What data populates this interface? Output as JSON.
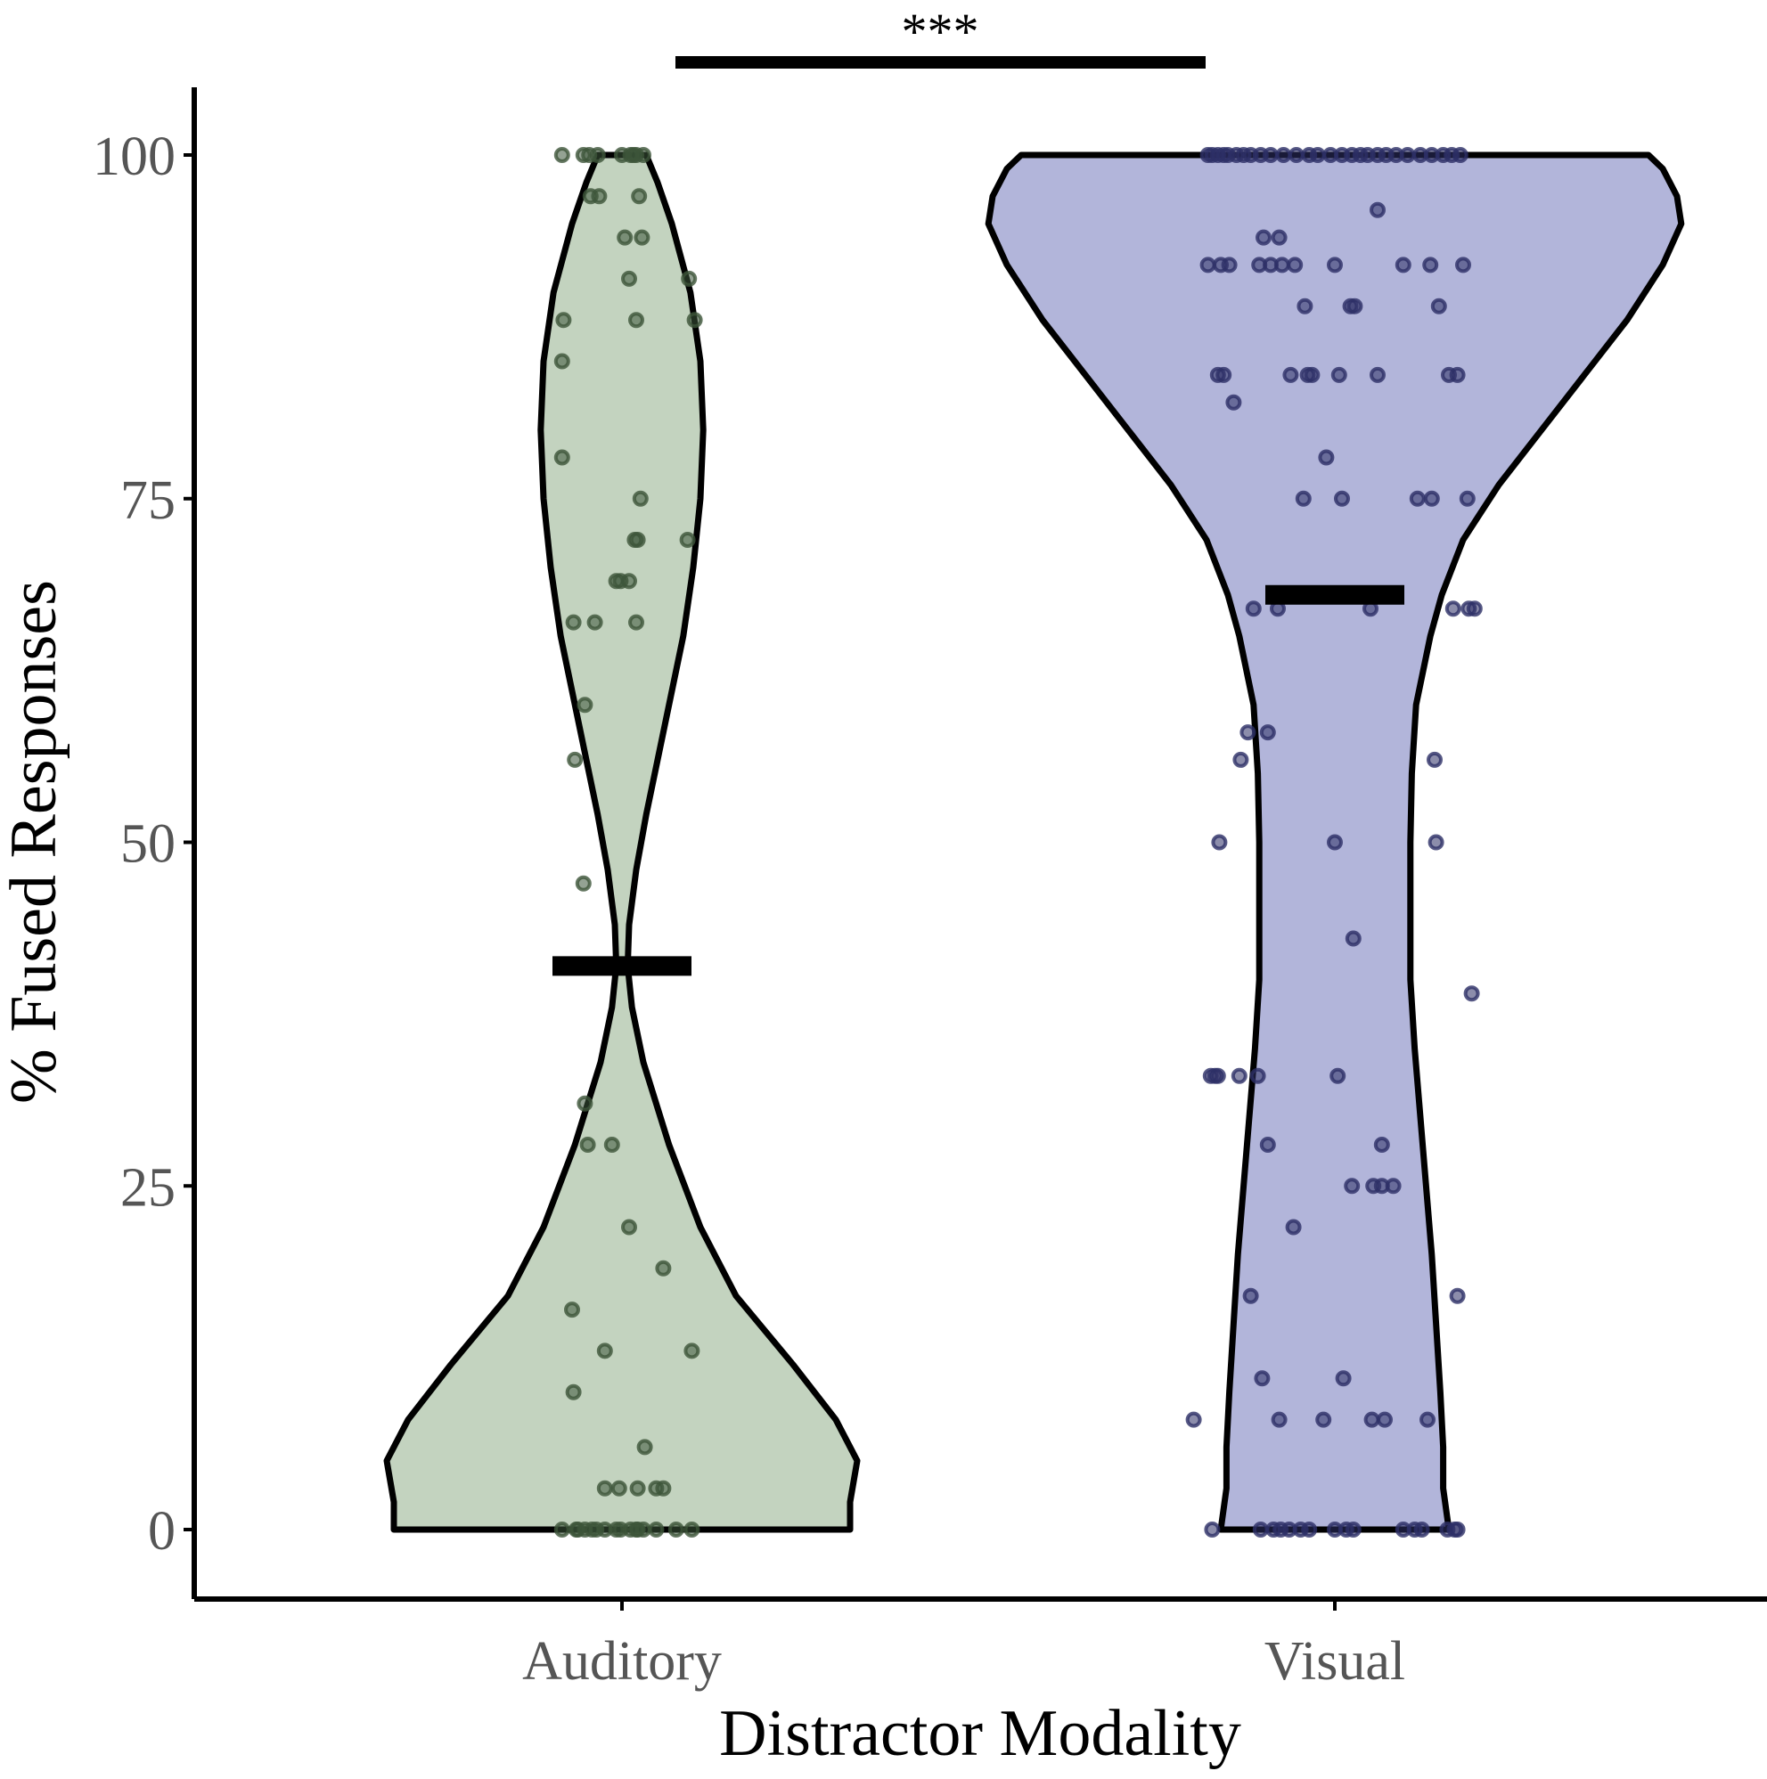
{
  "chart_data": {
    "type": "violin",
    "xlabel": "Distractor Modality",
    "ylabel": "% Fused Responses",
    "ylim": [
      -5,
      105
    ],
    "yticks": [
      0,
      25,
      50,
      75,
      100
    ],
    "categories": [
      "Auditory",
      "Visual"
    ],
    "significance": {
      "between": [
        "Auditory",
        "Visual"
      ],
      "label": "***"
    },
    "series": [
      {
        "category": "Auditory",
        "fill_color": "#c3d3bf",
        "point_color": "#3d553a",
        "mean": 41,
        "violin_halfwidth": [
          [
            0,
            16
          ],
          [
            2,
            16
          ],
          [
            5,
            16.5
          ],
          [
            8,
            15
          ],
          [
            12,
            12
          ],
          [
            17,
            8
          ],
          [
            22,
            5.5
          ],
          [
            28,
            3.3
          ],
          [
            34,
            1.5
          ],
          [
            38,
            0.7
          ],
          [
            41,
            0.4
          ],
          [
            44,
            0.5
          ],
          [
            48,
            1
          ],
          [
            52,
            1.7
          ],
          [
            56,
            2.5
          ],
          [
            60,
            3.3
          ],
          [
            65,
            4.3
          ],
          [
            70,
            5
          ],
          [
            75,
            5.5
          ],
          [
            80,
            5.7
          ],
          [
            85,
            5.5
          ],
          [
            90,
            4.8
          ],
          [
            95,
            3.5
          ],
          [
            98,
            2.5
          ],
          [
            100,
            1.7
          ]
        ],
        "points": [
          [
            0.0,
            100
          ],
          [
            0.6,
            100
          ],
          [
            0.8,
            100
          ],
          [
            1.0,
            100
          ],
          [
            1.5,
            100
          ],
          [
            -2.3,
            100
          ],
          [
            -1.7,
            100
          ],
          [
            -4.2,
            100
          ],
          [
            -2.7,
            100
          ],
          [
            -1.6,
            97
          ],
          [
            -2.2,
            97
          ],
          [
            1.2,
            97
          ],
          [
            1.4,
            94
          ],
          [
            0.2,
            94
          ],
          [
            4.7,
            91
          ],
          [
            0.5,
            91
          ],
          [
            1.0,
            88
          ],
          [
            -4.1,
            88
          ],
          [
            5.1,
            88
          ],
          [
            -4.2,
            85
          ],
          [
            -4.2,
            78
          ],
          [
            1.3,
            75
          ],
          [
            4.6,
            72
          ],
          [
            0.9,
            72
          ],
          [
            1.1,
            72
          ],
          [
            0.5,
            69
          ],
          [
            -0.4,
            69
          ],
          [
            -0.1,
            69
          ],
          [
            -3.4,
            66
          ],
          [
            -1.9,
            66
          ],
          [
            1.0,
            66
          ],
          [
            -2.6,
            60
          ],
          [
            -3.3,
            56
          ],
          [
            -2.7,
            47
          ],
          [
            3.1,
            41
          ],
          [
            -2.6,
            31
          ],
          [
            -2.4,
            28
          ],
          [
            -0.7,
            28
          ],
          [
            0.5,
            22
          ],
          [
            2.9,
            19
          ],
          [
            -3.5,
            16
          ],
          [
            -1.2,
            13
          ],
          [
            4.9,
            13
          ],
          [
            -3.4,
            10
          ],
          [
            1.6,
            6
          ],
          [
            -1.2,
            3
          ],
          [
            -0.2,
            3
          ],
          [
            1.1,
            3
          ],
          [
            2.4,
            3
          ],
          [
            2.9,
            3
          ],
          [
            -4.2,
            0
          ],
          [
            -3.2,
            0
          ],
          [
            -3.1,
            0
          ],
          [
            -2.6,
            0
          ],
          [
            -2.1,
            0
          ],
          [
            -1.8,
            0
          ],
          [
            -1.2,
            0
          ],
          [
            -0.4,
            0
          ],
          [
            -0.1,
            0
          ],
          [
            0.6,
            0
          ],
          [
            1.0,
            0
          ],
          [
            1.1,
            0
          ],
          [
            1.5,
            0
          ],
          [
            2.4,
            0
          ],
          [
            3.8,
            0
          ],
          [
            4.9,
            0
          ]
        ]
      },
      {
        "category": "Visual",
        "fill_color": "#b2b5da",
        "point_color": "#2d3066",
        "mean": 68,
        "violin_halfwidth": [
          [
            0,
            8
          ],
          [
            3,
            7.6
          ],
          [
            6,
            7.6
          ],
          [
            10,
            7.4
          ],
          [
            15,
            7.1
          ],
          [
            20,
            6.8
          ],
          [
            25,
            6.4
          ],
          [
            30,
            6
          ],
          [
            35,
            5.6
          ],
          [
            40,
            5.3
          ],
          [
            45,
            5.3
          ],
          [
            50,
            5.3
          ],
          [
            55,
            5.4
          ],
          [
            60,
            5.7
          ],
          [
            65,
            6.7
          ],
          [
            68,
            7.5
          ],
          [
            72,
            9
          ],
          [
            76,
            11.5
          ],
          [
            80,
            14.5
          ],
          [
            84,
            17.5
          ],
          [
            88,
            20.5
          ],
          [
            92,
            23
          ],
          [
            95,
            24.3
          ],
          [
            97,
            24
          ],
          [
            99,
            23
          ],
          [
            100,
            22
          ]
        ],
        "points": [
          [
            -8.9,
            100
          ],
          [
            -8.6,
            100
          ],
          [
            -8.2,
            100
          ],
          [
            -7.8,
            100
          ],
          [
            -7.5,
            100
          ],
          [
            -6.9,
            100
          ],
          [
            -6.4,
            100
          ],
          [
            -5.9,
            100
          ],
          [
            -5.2,
            100
          ],
          [
            -4.5,
            100
          ],
          [
            -3.6,
            100
          ],
          [
            -2.7,
            100
          ],
          [
            -1.8,
            100
          ],
          [
            -1.2,
            100
          ],
          [
            -0.3,
            100
          ],
          [
            0.5,
            100
          ],
          [
            1.2,
            100
          ],
          [
            1.8,
            100
          ],
          [
            2.3,
            100
          ],
          [
            3.0,
            100
          ],
          [
            3.6,
            100
          ],
          [
            4.3,
            100
          ],
          [
            5.1,
            100
          ],
          [
            6.0,
            100
          ],
          [
            6.8,
            100
          ],
          [
            7.6,
            100
          ],
          [
            8.2,
            100
          ],
          [
            8.8,
            100
          ],
          [
            3.0,
            96
          ],
          [
            -5.0,
            94
          ],
          [
            -3.9,
            94
          ],
          [
            -8.9,
            92
          ],
          [
            -8.0,
            92
          ],
          [
            -7.4,
            92
          ],
          [
            -5.3,
            92
          ],
          [
            -4.5,
            92
          ],
          [
            -3.7,
            92
          ],
          [
            -2.8,
            92
          ],
          [
            0.0,
            92
          ],
          [
            4.8,
            92
          ],
          [
            6.7,
            92
          ],
          [
            9.0,
            92
          ],
          [
            -2.1,
            89
          ],
          [
            1.1,
            89
          ],
          [
            1.4,
            89
          ],
          [
            7.3,
            89
          ],
          [
            -8.2,
            84
          ],
          [
            -7.8,
            84
          ],
          [
            -3.1,
            84
          ],
          [
            -1.9,
            84
          ],
          [
            -1.6,
            84
          ],
          [
            0.3,
            84
          ],
          [
            3.0,
            84
          ],
          [
            8.0,
            84
          ],
          [
            8.6,
            84
          ],
          [
            -7.1,
            82
          ],
          [
            -0.6,
            78
          ],
          [
            -2.2,
            75
          ],
          [
            0.5,
            75
          ],
          [
            5.8,
            75
          ],
          [
            6.8,
            75
          ],
          [
            9.3,
            75
          ],
          [
            -5.7,
            67
          ],
          [
            -4.0,
            67
          ],
          [
            2.5,
            67
          ],
          [
            8.3,
            67
          ],
          [
            9.4,
            67
          ],
          [
            9.8,
            67
          ],
          [
            -6.1,
            58
          ],
          [
            -4.7,
            58
          ],
          [
            -6.6,
            56
          ],
          [
            7.0,
            56
          ],
          [
            -8.1,
            50
          ],
          [
            0.0,
            50
          ],
          [
            7.1,
            50
          ],
          [
            1.3,
            43
          ],
          [
            9.6,
            39
          ],
          [
            -8.7,
            33
          ],
          [
            -8.4,
            33
          ],
          [
            -8.2,
            33
          ],
          [
            -6.7,
            33
          ],
          [
            -5.4,
            33
          ],
          [
            0.2,
            33
          ],
          [
            -4.7,
            28
          ],
          [
            3.3,
            28
          ],
          [
            1.2,
            25
          ],
          [
            2.7,
            25
          ],
          [
            3.3,
            25
          ],
          [
            4.1,
            25
          ],
          [
            -2.9,
            22
          ],
          [
            -5.9,
            17
          ],
          [
            8.6,
            17
          ],
          [
            -5.1,
            11
          ],
          [
            0.6,
            11
          ],
          [
            -9.9,
            8
          ],
          [
            -3.9,
            8
          ],
          [
            -0.8,
            8
          ],
          [
            2.6,
            8
          ],
          [
            3.5,
            8
          ],
          [
            6.5,
            8
          ],
          [
            -8.6,
            0
          ],
          [
            -5.2,
            0
          ],
          [
            -4.3,
            0
          ],
          [
            -3.8,
            0
          ],
          [
            -3.2,
            0
          ],
          [
            -2.4,
            0
          ],
          [
            -1.8,
            0
          ],
          [
            0.0,
            0
          ],
          [
            0.8,
            0
          ],
          [
            1.3,
            0
          ],
          [
            4.8,
            0
          ],
          [
            5.6,
            0
          ],
          [
            6.1,
            0
          ],
          [
            7.9,
            0
          ],
          [
            8.4,
            0
          ],
          [
            8.6,
            0
          ]
        ]
      }
    ]
  }
}
